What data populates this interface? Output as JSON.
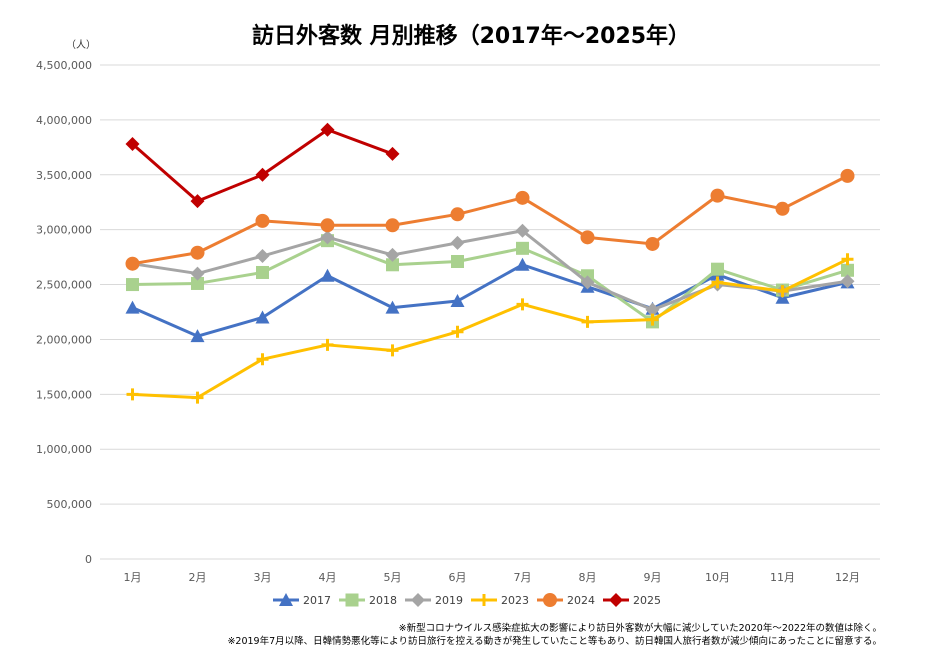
{
  "chart_data": {
    "type": "line",
    "title": "訪日外客数 月別推移（2017年～2025年）",
    "ylabel": "（人）",
    "ylim": [
      0,
      4500000
    ],
    "yticks": [
      0,
      500000,
      1000000,
      1500000,
      2000000,
      2500000,
      3000000,
      3500000,
      4000000,
      4500000
    ],
    "ytick_labels": [
      "0",
      "500,000",
      "1,000,000",
      "1,500,000",
      "2,000,000",
      "2,500,000",
      "3,000,000",
      "3,500,000",
      "4,000,000",
      "4,500,000"
    ],
    "categories": [
      "1月",
      "2月",
      "3月",
      "4月",
      "5月",
      "6月",
      "7月",
      "8月",
      "9月",
      "10月",
      "11月",
      "12月"
    ],
    "grid": true,
    "legend_position": "bottom",
    "series": [
      {
        "name": "2017",
        "color": "#4472c4",
        "marker": "triangle",
        "values": [
          2290000,
          2030000,
          2200000,
          2580000,
          2290000,
          2350000,
          2680000,
          2480000,
          2280000,
          2590000,
          2380000,
          2520000
        ]
      },
      {
        "name": "2018",
        "color": "#a9d18e",
        "marker": "square",
        "values": [
          2500000,
          2510000,
          2610000,
          2900000,
          2680000,
          2710000,
          2830000,
          2580000,
          2160000,
          2640000,
          2450000,
          2630000
        ]
      },
      {
        "name": "2019",
        "color": "#a5a5a5",
        "marker": "diamond",
        "values": [
          2690000,
          2600000,
          2760000,
          2930000,
          2770000,
          2880000,
          2990000,
          2520000,
          2270000,
          2500000,
          2440000,
          2530000
        ]
      },
      {
        "name": "2023",
        "color": "#ffc000",
        "marker": "plus",
        "values": [
          1500000,
          1470000,
          1820000,
          1950000,
          1900000,
          2070000,
          2320000,
          2160000,
          2180000,
          2520000,
          2440000,
          2730000
        ]
      },
      {
        "name": "2024",
        "color": "#ed7d31",
        "marker": "circle",
        "values": [
          2690000,
          2790000,
          3080000,
          3040000,
          3040000,
          3140000,
          3290000,
          2930000,
          2870000,
          3310000,
          3190000,
          3490000
        ]
      },
      {
        "name": "2025",
        "color": "#c00000",
        "marker": "diamond",
        "values": [
          3780000,
          3260000,
          3500000,
          3910000,
          3690000,
          null,
          null,
          null,
          null,
          null,
          null,
          null
        ]
      }
    ],
    "notes": [
      "※新型コロナウイルス感染症拡大の影響により訪日外客数が大幅に減少していた2020年～2022年の数値は除く。",
      "※2019年7月以降、日韓情勢悪化等により訪日旅行を控える動きが発生していたこと等もあり、訪日韓国人旅行者数が減少傾向にあったことに留意する。"
    ]
  }
}
